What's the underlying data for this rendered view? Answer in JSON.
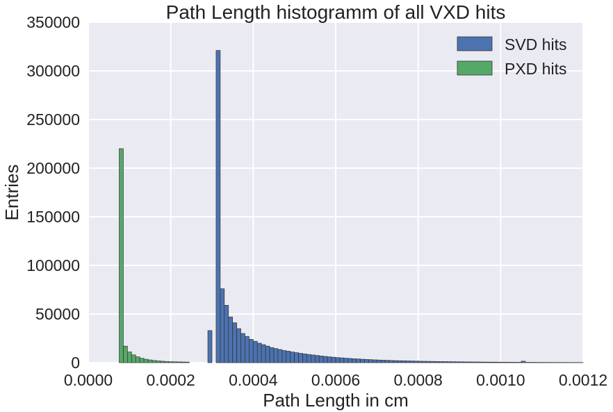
{
  "chart_data": {
    "type": "bar",
    "title": "Path Length histogramm of all VXD hits",
    "xlabel": "Path Length in cm",
    "ylabel": "Entries",
    "xlim": [
      0,
      0.0012
    ],
    "ylim": [
      0,
      350000
    ],
    "x_ticks": [
      "0.0000",
      "0.0002",
      "0.0004",
      "0.0006",
      "0.0008",
      "0.0010",
      "0.0012"
    ],
    "y_ticks": [
      "0",
      "50000",
      "100000",
      "150000",
      "200000",
      "250000",
      "300000",
      "350000"
    ],
    "grid": true,
    "legend_position": "top-right",
    "bin_width": 1e-05,
    "series": [
      {
        "name": "SVD hits",
        "color": "#4c72b0",
        "bins": [
          [
            0.00029,
            33000
          ],
          [
            0.00031,
            321000
          ],
          [
            0.00032,
            76000
          ],
          [
            0.00033,
            59000
          ],
          [
            0.00034,
            47000
          ],
          [
            0.00035,
            41000
          ],
          [
            0.00036,
            35000
          ],
          [
            0.00037,
            30000
          ],
          [
            0.00038,
            27000
          ],
          [
            0.00039,
            24000
          ],
          [
            0.0004,
            22000
          ],
          [
            0.00041,
            20000
          ],
          [
            0.00042,
            18500
          ],
          [
            0.00043,
            17000
          ],
          [
            0.00044,
            15500
          ],
          [
            0.00045,
            14500
          ],
          [
            0.00046,
            13500
          ],
          [
            0.00047,
            12500
          ],
          [
            0.00048,
            11800
          ],
          [
            0.00049,
            11000
          ],
          [
            0.0005,
            10300
          ],
          [
            0.00051,
            9600
          ],
          [
            0.00052,
            9000
          ],
          [
            0.00053,
            8400
          ],
          [
            0.00054,
            7900
          ],
          [
            0.00055,
            7400
          ],
          [
            0.00056,
            6900
          ],
          [
            0.00057,
            6400
          ],
          [
            0.00058,
            6000
          ],
          [
            0.00059,
            5600
          ],
          [
            0.0006,
            5200
          ],
          [
            0.00061,
            4900
          ],
          [
            0.00062,
            4600
          ],
          [
            0.00063,
            4300
          ],
          [
            0.00064,
            4000
          ],
          [
            0.00065,
            3800
          ],
          [
            0.00066,
            3500
          ],
          [
            0.00067,
            3300
          ],
          [
            0.00068,
            3100
          ],
          [
            0.00069,
            2900
          ],
          [
            0.0007,
            2700
          ],
          [
            0.00071,
            2550
          ],
          [
            0.00072,
            2400
          ],
          [
            0.00073,
            2250
          ],
          [
            0.00074,
            2100
          ],
          [
            0.00075,
            2000
          ],
          [
            0.00076,
            1900
          ],
          [
            0.00077,
            1800
          ],
          [
            0.00078,
            1700
          ],
          [
            0.00079,
            1600
          ],
          [
            0.0008,
            1500
          ],
          [
            0.00081,
            1420
          ],
          [
            0.00082,
            1340
          ],
          [
            0.00083,
            1260
          ],
          [
            0.00084,
            1190
          ],
          [
            0.00085,
            1120
          ],
          [
            0.00086,
            1060
          ],
          [
            0.00087,
            1000
          ],
          [
            0.00088,
            950
          ],
          [
            0.00089,
            900
          ],
          [
            0.0009,
            850
          ],
          [
            0.00091,
            800
          ],
          [
            0.00092,
            760
          ],
          [
            0.00093,
            720
          ],
          [
            0.00094,
            680
          ],
          [
            0.00095,
            640
          ],
          [
            0.00096,
            600
          ],
          [
            0.00097,
            570
          ],
          [
            0.00098,
            540
          ],
          [
            0.00099,
            510
          ],
          [
            0.001,
            480
          ],
          [
            0.00101,
            450
          ],
          [
            0.00102,
            430
          ],
          [
            0.00103,
            410
          ],
          [
            0.00104,
            390
          ],
          [
            0.00105,
            1500
          ],
          [
            0.00106,
            360
          ],
          [
            0.00107,
            340
          ],
          [
            0.00108,
            320
          ],
          [
            0.00109,
            300
          ],
          [
            0.0011,
            290
          ],
          [
            0.00111,
            280
          ],
          [
            0.00112,
            270
          ],
          [
            0.00113,
            260
          ],
          [
            0.00114,
            250
          ],
          [
            0.00115,
            240
          ],
          [
            0.00116,
            230
          ],
          [
            0.00117,
            220
          ],
          [
            0.00118,
            210
          ],
          [
            0.00119,
            200
          ]
        ]
      },
      {
        "name": "PXD hits",
        "color": "#55a868",
        "bins": [
          [
            7.5e-05,
            220000
          ],
          [
            8.5e-05,
            17000
          ],
          [
            9.5e-05,
            11000
          ],
          [
            0.000105,
            8000
          ],
          [
            0.000115,
            6000
          ],
          [
            0.000125,
            4500
          ],
          [
            0.000135,
            3500
          ],
          [
            0.000145,
            2800
          ],
          [
            0.000155,
            2200
          ],
          [
            0.000165,
            1800
          ],
          [
            0.000175,
            1500
          ],
          [
            0.000185,
            1200
          ],
          [
            0.000195,
            1000
          ],
          [
            0.000205,
            900
          ],
          [
            0.000215,
            800
          ],
          [
            0.000225,
            700
          ],
          [
            0.000235,
            600
          ]
        ]
      }
    ]
  }
}
